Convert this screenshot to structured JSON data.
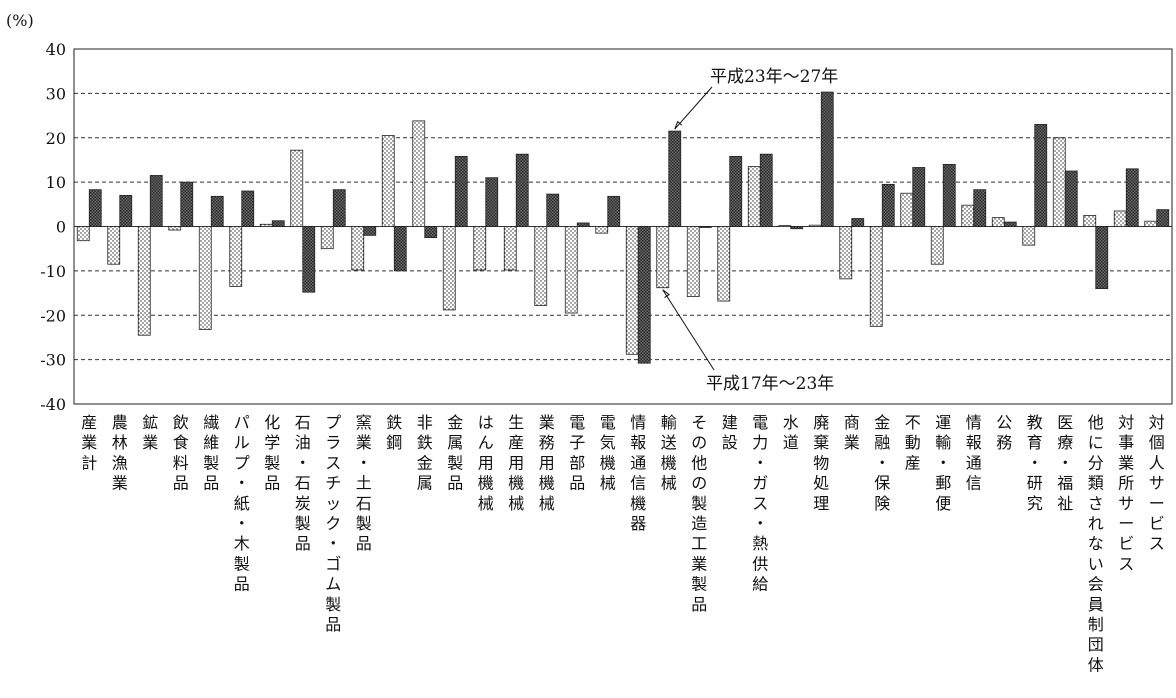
{
  "chart_data": {
    "type": "bar",
    "unit_label": "(%)",
    "ylim": [
      -40,
      40
    ],
    "yticks": [
      40,
      30,
      20,
      10,
      0,
      -10,
      -20,
      -30,
      -40
    ],
    "grid": "horizontal-dashed",
    "categories": [
      "産業計",
      "農林漁業",
      "鉱業",
      "飲食料品",
      "繊維製品",
      "パルプ・紙・木製品",
      "化学製品",
      "石油・石炭製品",
      "プラスチック・ゴム製品",
      "窯業・土石製品",
      "鉄鋼",
      "非鉄金属",
      "金属製品",
      "はん用機械",
      "生産用機械",
      "業務用機械",
      "電子部品",
      "電気機械",
      "情報通信機器",
      "輸送機械",
      "その他の製造工業製品",
      "建設",
      "電力・ガス・熱供給",
      "水道",
      "廃棄物処理",
      "商業",
      "金融・保険",
      "不動産",
      "運輸・郵便",
      "情報通信",
      "公務",
      "教育・研究",
      "医療・福祉",
      "他に分類されない会員制団体",
      "対事業所サービス",
      "対個人サービス"
    ],
    "series": [
      {
        "name": "平成17年～23年",
        "pattern": "dotted",
        "color": "#ffffff",
        "values": [
          -3.2,
          -8.5,
          -24.5,
          -0.8,
          -23.2,
          -13.5,
          0.5,
          17.2,
          -5.0,
          -9.8,
          20.5,
          23.8,
          -18.8,
          -9.8,
          -9.8,
          -17.8,
          -19.5,
          -1.5,
          -28.8,
          -13.8,
          -15.8,
          -16.8,
          13.5,
          0.2,
          0.3,
          -11.8,
          -22.5,
          7.5,
          -8.5,
          4.8,
          2.0,
          -4.2,
          20.0,
          2.5,
          3.5,
          1.2
        ]
      },
      {
        "name": "平成23年～27年",
        "pattern": "crosshatch",
        "color": "#555555",
        "values": [
          8.3,
          7.0,
          11.5,
          10.0,
          6.8,
          8.0,
          1.3,
          -14.8,
          8.3,
          -2.0,
          -10.0,
          -2.5,
          15.8,
          11.0,
          16.3,
          7.3,
          0.8,
          6.8,
          -30.8,
          21.5,
          -0.2,
          15.8,
          16.3,
          -0.5,
          30.3,
          1.8,
          9.5,
          13.3,
          14.0,
          8.3,
          1.0,
          23.0,
          12.5,
          -14.0,
          13.0,
          3.8
        ]
      }
    ],
    "annotations": [
      {
        "text": "平成23年～27年",
        "target_series": 1,
        "target_category": "輸送機械"
      },
      {
        "text": "平成17年～23年",
        "target_series": 0,
        "target_category": "輸送機械"
      }
    ]
  }
}
